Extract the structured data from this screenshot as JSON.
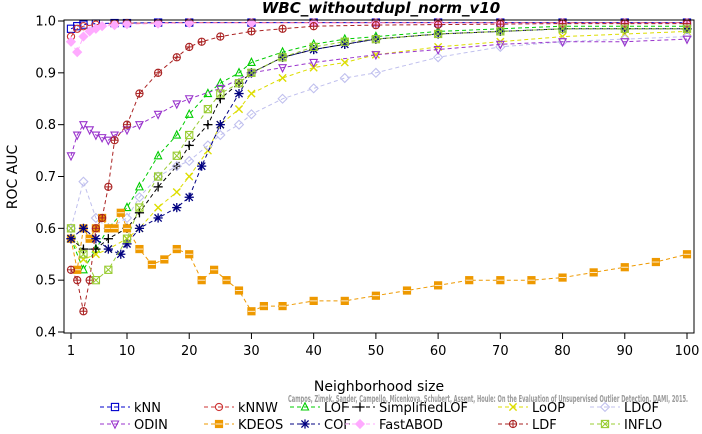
{
  "chart_data": {
    "type": "line",
    "title": "WBC_withoutdupl_norm_v10",
    "xlabel": "Neighborhood size",
    "ylabel": "ROC AUC",
    "xlim": [
      1,
      100
    ],
    "ylim": [
      0.4,
      1.0
    ],
    "x_ticks": [
      "1",
      "10",
      "20",
      "30",
      "40",
      "50",
      "60",
      "70",
      "80",
      "90",
      "100"
    ],
    "y_ticks": [
      "0.4",
      "0.5",
      "0.6",
      "0.7",
      "0.8",
      "0.9",
      "1.0"
    ],
    "grid": false,
    "legend_position": "bottom",
    "watermark": "Campos, Zimek, Sander, Campello, Micenkova, Schubert, Assent, Houle: On the Evaluation of Unsupervised Outlier Detection. DAMI, 2015.",
    "series": [
      {
        "name": "kNN",
        "color": "#0000cc",
        "marker": "square",
        "dashed": true,
        "x": [
          1,
          2,
          3,
          5,
          8,
          10,
          15,
          20,
          30,
          40,
          50,
          60,
          70,
          80,
          90,
          100
        ],
        "y": [
          0.985,
          0.99,
          0.993,
          0.995,
          0.996,
          0.996,
          0.997,
          0.997,
          0.997,
          0.997,
          0.997,
          0.997,
          0.997,
          0.997,
          0.997,
          0.997
        ]
      },
      {
        "name": "kNNW",
        "color": "#cc3333",
        "marker": "circle",
        "dashed": true,
        "x": [
          1,
          2,
          3,
          5,
          8,
          10,
          15,
          20,
          30,
          40,
          50,
          60,
          70,
          80,
          90,
          100
        ],
        "y": [
          0.97,
          0.985,
          0.99,
          0.993,
          0.995,
          0.996,
          0.996,
          0.997,
          0.997,
          0.997,
          0.997,
          0.997,
          0.997,
          0.997,
          0.997,
          0.997
        ]
      },
      {
        "name": "LOF",
        "color": "#00cc00",
        "marker": "triangle-up",
        "dashed": true,
        "x": [
          1,
          3,
          5,
          7,
          10,
          12,
          15,
          18,
          20,
          23,
          25,
          28,
          30,
          35,
          40,
          45,
          50,
          60,
          70,
          80,
          90,
          100
        ],
        "y": [
          0.58,
          0.52,
          0.56,
          0.6,
          0.64,
          0.68,
          0.74,
          0.78,
          0.82,
          0.86,
          0.88,
          0.9,
          0.92,
          0.94,
          0.955,
          0.965,
          0.97,
          0.98,
          0.985,
          0.99,
          0.99,
          0.99
        ]
      },
      {
        "name": "SimplifiedLOF",
        "color": "#000000",
        "marker": "plus",
        "dashed": true,
        "x": [
          1,
          3,
          5,
          7,
          10,
          12,
          15,
          18,
          20,
          23,
          25,
          28,
          30,
          35,
          40,
          45,
          50,
          60,
          70,
          80,
          90,
          100
        ],
        "y": [
          0.58,
          0.56,
          0.56,
          0.58,
          0.6,
          0.63,
          0.68,
          0.72,
          0.76,
          0.8,
          0.85,
          0.88,
          0.9,
          0.93,
          0.945,
          0.955,
          0.965,
          0.975,
          0.98,
          0.985,
          0.985,
          0.985
        ]
      },
      {
        "name": "LoOP",
        "color": "#dddd00",
        "marker": "x",
        "dashed": true,
        "x": [
          1,
          3,
          5,
          7,
          10,
          12,
          15,
          18,
          20,
          23,
          25,
          28,
          30,
          35,
          40,
          45,
          50,
          60,
          70,
          80,
          90,
          100
        ],
        "y": [
          0.58,
          0.54,
          0.55,
          0.56,
          0.58,
          0.6,
          0.64,
          0.67,
          0.7,
          0.75,
          0.8,
          0.83,
          0.86,
          0.89,
          0.91,
          0.92,
          0.935,
          0.95,
          0.96,
          0.97,
          0.975,
          0.98
        ]
      },
      {
        "name": "LDOF",
        "color": "#c0c0ee",
        "marker": "diamond",
        "dashed": true,
        "x": [
          1,
          3,
          5,
          7,
          10,
          12,
          15,
          18,
          20,
          23,
          25,
          28,
          30,
          35,
          40,
          45,
          50,
          60,
          70,
          80,
          90,
          100
        ],
        "y": [
          0.6,
          0.69,
          0.62,
          0.6,
          0.62,
          0.66,
          0.7,
          0.72,
          0.73,
          0.76,
          0.78,
          0.8,
          0.82,
          0.85,
          0.87,
          0.89,
          0.9,
          0.93,
          0.95,
          0.96,
          0.965,
          0.97
        ]
      },
      {
        "name": "ODIN",
        "color": "#9933cc",
        "marker": "triangle-down",
        "dashed": true,
        "x": [
          1,
          2,
          3,
          4,
          5,
          6,
          7,
          8,
          10,
          12,
          15,
          18,
          20,
          25,
          30,
          35,
          40,
          50,
          60,
          70,
          80,
          90,
          100
        ],
        "y": [
          0.74,
          0.78,
          0.8,
          0.79,
          0.78,
          0.775,
          0.77,
          0.78,
          0.79,
          0.8,
          0.82,
          0.84,
          0.85,
          0.87,
          0.9,
          0.91,
          0.92,
          0.935,
          0.945,
          0.955,
          0.96,
          0.96,
          0.965
        ]
      },
      {
        "name": "KDEOS",
        "color": "#ee9900",
        "marker": "square-filled",
        "dashed": true,
        "x": [
          1,
          2,
          3,
          4,
          5,
          6,
          7,
          8,
          9,
          10,
          12,
          14,
          16,
          18,
          20,
          22,
          24,
          26,
          28,
          30,
          32,
          35,
          40,
          45,
          50,
          55,
          60,
          65,
          70,
          75,
          80,
          85,
          90,
          95,
          100
        ],
        "y": [
          0.58,
          0.52,
          0.6,
          0.58,
          0.6,
          0.62,
          0.6,
          0.6,
          0.63,
          0.6,
          0.56,
          0.53,
          0.54,
          0.56,
          0.55,
          0.5,
          0.52,
          0.5,
          0.48,
          0.44,
          0.45,
          0.45,
          0.46,
          0.46,
          0.47,
          0.48,
          0.49,
          0.5,
          0.5,
          0.5,
          0.505,
          0.515,
          0.525,
          0.535,
          0.55
        ]
      },
      {
        "name": "COF",
        "color": "#000080",
        "marker": "asterisk",
        "dashed": true,
        "x": [
          1,
          3,
          5,
          7,
          9,
          10,
          12,
          15,
          18,
          20,
          22,
          25,
          28,
          30,
          35,
          40,
          45,
          50,
          60,
          70,
          80,
          90,
          100
        ],
        "y": [
          0.58,
          0.6,
          0.58,
          0.56,
          0.55,
          0.57,
          0.6,
          0.62,
          0.64,
          0.66,
          0.72,
          0.8,
          0.86,
          0.9,
          0.93,
          0.945,
          0.955,
          0.965,
          0.975,
          0.98,
          0.985,
          0.985,
          0.985
        ]
      },
      {
        "name": "FastABOD",
        "color": "#ffaaff",
        "marker": "diamond-filled",
        "dashed": true,
        "x": [
          1,
          2,
          3,
          4,
          5,
          6,
          8,
          10,
          15,
          20,
          30,
          40,
          50,
          60,
          70,
          80,
          90,
          100
        ],
        "y": [
          0.96,
          0.94,
          0.97,
          0.98,
          0.985,
          0.99,
          0.992,
          0.994,
          0.995,
          0.996,
          0.996,
          0.996,
          0.996,
          0.996,
          0.996,
          0.996,
          0.996,
          0.996
        ]
      },
      {
        "name": "LDF",
        "color": "#aa2222",
        "marker": "circle-plus",
        "dashed": true,
        "x": [
          1,
          2,
          3,
          4,
          5,
          6,
          7,
          8,
          10,
          12,
          15,
          18,
          20,
          22,
          25,
          30,
          35,
          40,
          50,
          60,
          70,
          80,
          90,
          100
        ],
        "y": [
          0.52,
          0.5,
          0.44,
          0.5,
          0.6,
          0.62,
          0.68,
          0.77,
          0.8,
          0.86,
          0.9,
          0.93,
          0.95,
          0.96,
          0.97,
          0.98,
          0.985,
          0.99,
          0.992,
          0.993,
          0.994,
          0.995,
          0.995,
          0.995
        ]
      },
      {
        "name": "INFLO",
        "color": "#99cc33",
        "marker": "box-x",
        "dashed": true,
        "x": [
          1,
          3,
          5,
          7,
          10,
          12,
          15,
          18,
          20,
          23,
          25,
          28,
          30,
          35,
          40,
          45,
          50,
          60,
          70,
          80,
          90,
          100
        ],
        "y": [
          0.6,
          0.55,
          0.5,
          0.52,
          0.58,
          0.64,
          0.7,
          0.74,
          0.78,
          0.83,
          0.86,
          0.88,
          0.9,
          0.93,
          0.95,
          0.96,
          0.965,
          0.975,
          0.98,
          0.985,
          0.985,
          0.985
        ]
      }
    ]
  }
}
